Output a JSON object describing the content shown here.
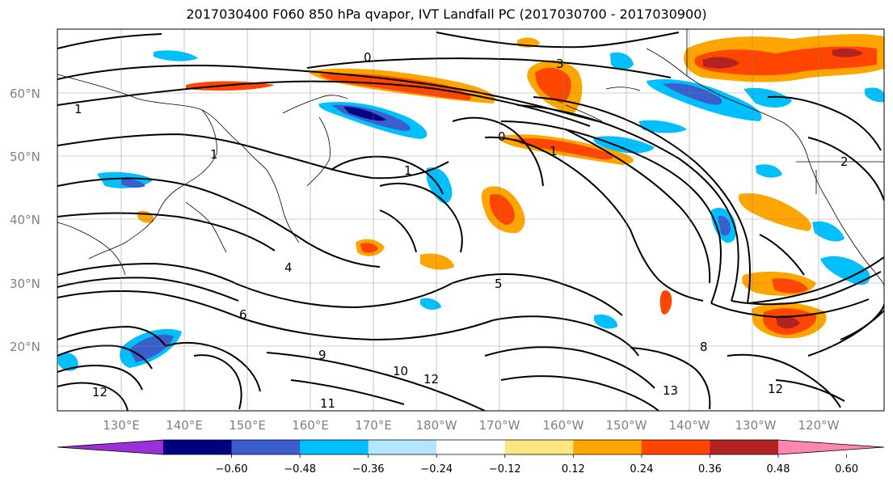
{
  "title": "2017030400 F060 850 hPa qvapor, IVT Landfall PC (2017030700 - 2017030900)",
  "lat_labels": [
    "60°N",
    "50°N",
    "40°N",
    "30°N",
    "20°N"
  ],
  "lon_labels": [
    "130°E",
    "140°E",
    "150°E",
    "160°E",
    "170°E",
    "180°W",
    "170°W",
    "160°W",
    "150°W",
    "140°W",
    "130°W",
    "120°W"
  ],
  "colorbar": {
    "colors": [
      "#9b30d9",
      "#000080",
      "#3a5fcd",
      "#00bfff",
      "#b3e5ff",
      "#ffffff",
      "#ffe680",
      "#ffa500",
      "#ff4500",
      "#b22222",
      "#ff85b3"
    ],
    "tick_labels": [
      "−0.60",
      "−0.48",
      "−0.36",
      "−0.24",
      "−0.12",
      "0.12",
      "0.24",
      "0.36",
      "0.48",
      "0.60"
    ]
  },
  "contour_labels": [
    "0",
    "0",
    "1",
    "1",
    "1",
    "1",
    "2",
    "3",
    "4",
    "5",
    "6",
    "8",
    "9",
    "10",
    "12",
    "12",
    "11",
    "12",
    "13"
  ]
}
